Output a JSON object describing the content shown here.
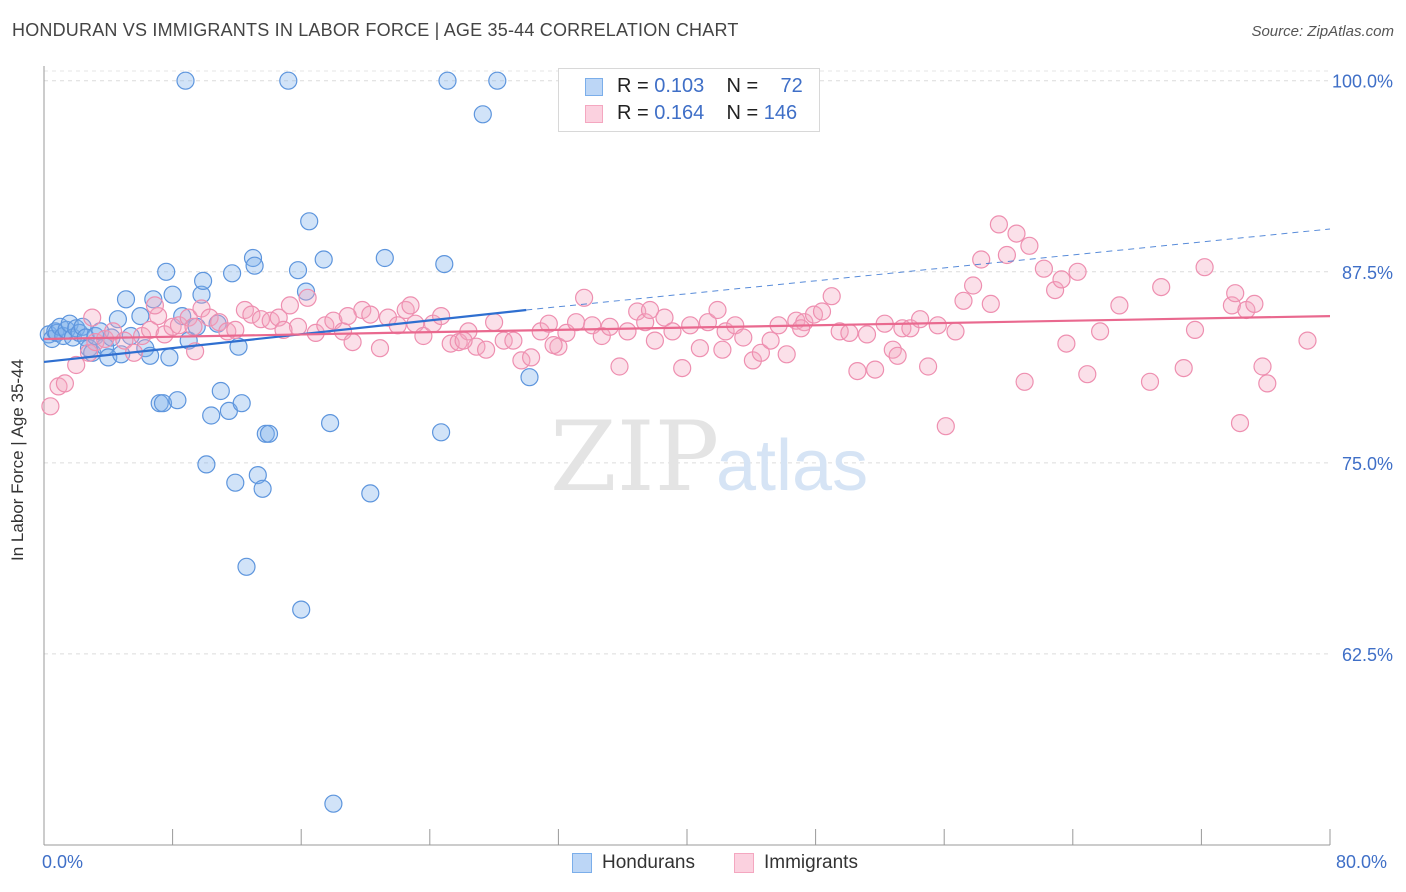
{
  "title": "HONDURAN VS IMMIGRANTS IN LABOR FORCE | AGE 35-44 CORRELATION CHART",
  "source": "Source: ZipAtlas.com",
  "watermark": {
    "zip": "ZIP",
    "atlas": "atlas"
  },
  "stats": [
    {
      "r_label": "R = ",
      "r_value": "0.103",
      "n_label": "N = ",
      "n_value": "72",
      "color": "#7baeea"
    },
    {
      "r_label": "R = ",
      "r_value": "0.164",
      "n_label": "N = ",
      "n_value": "146",
      "color": "#f4a7c0"
    }
  ],
  "legend": [
    {
      "label": "Hondurans",
      "color": "#7baeea"
    },
    {
      "label": "Immigrants",
      "color": "#f4a7c0"
    }
  ],
  "chart_data": {
    "type": "scatter",
    "xlabel": "",
    "ylabel": "In Labor Force | Age 35-44",
    "xlim": [
      0,
      80
    ],
    "ylim": [
      50,
      100.7
    ],
    "x_tick_labels": [
      "0.0%",
      "80.0%"
    ],
    "y_tick_labels": [
      {
        "value": 100,
        "label": "100.0%"
      },
      {
        "value": 87.5,
        "label": "87.5%"
      },
      {
        "value": 75,
        "label": "75.0%"
      },
      {
        "value": 62.5,
        "label": "62.5%"
      }
    ],
    "grid": true,
    "series": [
      {
        "name": "Hondurans",
        "color": "#7baeea",
        "line_color": "#2f6fd0",
        "trend": {
          "x0": 0,
          "y0": 81.6,
          "x1": 30,
          "y1": 85.0,
          "dashed_to_x": 80,
          "dashed_to_y": 90.3
        },
        "points": [
          [
            0.3,
            83.4
          ],
          [
            0.5,
            83.1
          ],
          [
            0.7,
            83.6
          ],
          [
            0.8,
            83.5
          ],
          [
            1.0,
            83.9
          ],
          [
            1.2,
            83.3
          ],
          [
            1.4,
            83.7
          ],
          [
            1.6,
            84.1
          ],
          [
            1.8,
            83.2
          ],
          [
            2.0,
            83.8
          ],
          [
            2.2,
            83.5
          ],
          [
            2.4,
            83.9
          ],
          [
            2.6,
            83.2
          ],
          [
            2.8,
            82.5
          ],
          [
            3.0,
            82.2
          ],
          [
            3.2,
            83.3
          ],
          [
            3.5,
            83.6
          ],
          [
            3.8,
            82.6
          ],
          [
            4.0,
            81.9
          ],
          [
            4.2,
            83.2
          ],
          [
            4.6,
            84.4
          ],
          [
            4.8,
            82.1
          ],
          [
            5.1,
            85.7
          ],
          [
            5.4,
            83.3
          ],
          [
            6.0,
            84.6
          ],
          [
            6.3,
            82.5
          ],
          [
            6.6,
            82.0
          ],
          [
            6.8,
            85.7
          ],
          [
            7.2,
            78.9
          ],
          [
            7.4,
            78.9
          ],
          [
            7.6,
            87.5
          ],
          [
            7.8,
            81.9
          ],
          [
            8.0,
            86.0
          ],
          [
            8.3,
            79.1
          ],
          [
            8.6,
            84.6
          ],
          [
            8.8,
            100.0
          ],
          [
            9.0,
            83.0
          ],
          [
            9.5,
            83.9
          ],
          [
            9.8,
            86.0
          ],
          [
            9.9,
            86.9
          ],
          [
            10.1,
            74.9
          ],
          [
            10.4,
            78.1
          ],
          [
            10.8,
            84.1
          ],
          [
            11.0,
            79.7
          ],
          [
            11.5,
            78.4
          ],
          [
            11.7,
            87.4
          ],
          [
            11.9,
            73.7
          ],
          [
            12.1,
            82.6
          ],
          [
            12.3,
            78.9
          ],
          [
            12.6,
            68.2
          ],
          [
            13.0,
            88.4
          ],
          [
            13.1,
            87.9
          ],
          [
            13.3,
            74.2
          ],
          [
            13.6,
            73.3
          ],
          [
            13.8,
            76.9
          ],
          [
            14.0,
            76.9
          ],
          [
            15.2,
            100.0
          ],
          [
            15.8,
            87.6
          ],
          [
            16.0,
            65.4
          ],
          [
            16.3,
            86.2
          ],
          [
            16.5,
            90.8
          ],
          [
            17.4,
            88.3
          ],
          [
            17.8,
            77.6
          ],
          [
            18.0,
            52.7
          ],
          [
            20.3,
            73.0
          ],
          [
            21.2,
            88.4
          ],
          [
            24.7,
            77.0
          ],
          [
            24.9,
            88.0
          ],
          [
            25.1,
            100.0
          ],
          [
            27.3,
            97.8
          ],
          [
            28.2,
            100.0
          ],
          [
            30.2,
            80.6
          ]
        ]
      },
      {
        "name": "Immigrants",
        "color": "#f4a7c0",
        "line_color": "#e9698f",
        "trend": {
          "x0": 0,
          "y0": 83.1,
          "x1": 80,
          "y1": 84.6
        },
        "points": [
          [
            0.4,
            78.7
          ],
          [
            0.9,
            80.0
          ],
          [
            1.3,
            80.2
          ],
          [
            2.0,
            81.4
          ],
          [
            2.8,
            82.2
          ],
          [
            3.2,
            82.9
          ],
          [
            3.8,
            83.1
          ],
          [
            4.3,
            83.6
          ],
          [
            5.0,
            83.0
          ],
          [
            5.6,
            82.2
          ],
          [
            6.1,
            83.3
          ],
          [
            6.6,
            83.7
          ],
          [
            7.1,
            84.6
          ],
          [
            7.5,
            83.4
          ],
          [
            8.0,
            83.9
          ],
          [
            8.4,
            84.0
          ],
          [
            9.0,
            84.5
          ],
          [
            9.3,
            83.9
          ],
          [
            9.8,
            85.1
          ],
          [
            10.3,
            84.5
          ],
          [
            10.9,
            84.2
          ],
          [
            11.4,
            83.6
          ],
          [
            11.9,
            83.7
          ],
          [
            12.5,
            85.0
          ],
          [
            12.9,
            84.7
          ],
          [
            13.5,
            84.4
          ],
          [
            14.1,
            84.3
          ],
          [
            14.6,
            84.5
          ],
          [
            15.3,
            85.3
          ],
          [
            15.8,
            83.9
          ],
          [
            16.4,
            85.8
          ],
          [
            16.9,
            83.5
          ],
          [
            17.5,
            84.0
          ],
          [
            18.0,
            84.3
          ],
          [
            18.6,
            83.6
          ],
          [
            19.2,
            82.9
          ],
          [
            19.8,
            85.0
          ],
          [
            20.3,
            84.7
          ],
          [
            20.9,
            82.5
          ],
          [
            21.4,
            84.5
          ],
          [
            22.0,
            84.0
          ],
          [
            22.5,
            85.0
          ],
          [
            23.1,
            84.1
          ],
          [
            23.6,
            83.3
          ],
          [
            24.2,
            84.1
          ],
          [
            24.7,
            84.6
          ],
          [
            25.3,
            82.8
          ],
          [
            25.8,
            82.9
          ],
          [
            26.4,
            83.6
          ],
          [
            26.9,
            82.6
          ],
          [
            27.5,
            82.4
          ],
          [
            28.0,
            84.2
          ],
          [
            28.6,
            83.0
          ],
          [
            29.2,
            83.0
          ],
          [
            29.7,
            81.7
          ],
          [
            30.3,
            81.9
          ],
          [
            30.9,
            83.6
          ],
          [
            31.4,
            84.1
          ],
          [
            32.0,
            82.6
          ],
          [
            32.5,
            83.5
          ],
          [
            33.1,
            84.2
          ],
          [
            33.6,
            85.8
          ],
          [
            34.1,
            84.0
          ],
          [
            34.7,
            83.3
          ],
          [
            35.2,
            83.9
          ],
          [
            35.8,
            81.3
          ],
          [
            36.3,
            83.6
          ],
          [
            36.9,
            84.9
          ],
          [
            37.4,
            84.2
          ],
          [
            38.0,
            83.0
          ],
          [
            38.6,
            84.5
          ],
          [
            39.1,
            83.6
          ],
          [
            39.7,
            81.2
          ],
          [
            40.2,
            84.0
          ],
          [
            40.8,
            82.5
          ],
          [
            41.3,
            84.2
          ],
          [
            41.9,
            85.0
          ],
          [
            42.4,
            83.6
          ],
          [
            43.0,
            84.0
          ],
          [
            43.5,
            83.2
          ],
          [
            44.1,
            81.7
          ],
          [
            44.6,
            82.2
          ],
          [
            45.2,
            83.0
          ],
          [
            45.7,
            84.0
          ],
          [
            46.2,
            82.1
          ],
          [
            46.8,
            84.3
          ],
          [
            47.3,
            84.2
          ],
          [
            47.9,
            84.7
          ],
          [
            48.4,
            84.9
          ],
          [
            49.0,
            85.9
          ],
          [
            49.5,
            83.6
          ],
          [
            50.1,
            83.5
          ],
          [
            50.6,
            81.0
          ],
          [
            51.2,
            83.4
          ],
          [
            51.7,
            81.1
          ],
          [
            52.3,
            84.1
          ],
          [
            52.8,
            82.4
          ],
          [
            53.4,
            83.8
          ],
          [
            53.9,
            83.8
          ],
          [
            54.5,
            84.4
          ],
          [
            55.0,
            81.3
          ],
          [
            55.6,
            84.0
          ],
          [
            56.1,
            77.4
          ],
          [
            56.7,
            83.6
          ],
          [
            57.2,
            85.6
          ],
          [
            57.8,
            86.6
          ],
          [
            58.3,
            88.3
          ],
          [
            58.9,
            85.4
          ],
          [
            59.4,
            90.6
          ],
          [
            59.9,
            88.6
          ],
          [
            60.5,
            90.0
          ],
          [
            61.0,
            80.3
          ],
          [
            61.3,
            89.2
          ],
          [
            62.2,
            87.7
          ],
          [
            62.9,
            86.3
          ],
          [
            63.3,
            87.0
          ],
          [
            63.6,
            82.8
          ],
          [
            64.3,
            87.5
          ],
          [
            64.9,
            80.8
          ],
          [
            65.7,
            83.6
          ],
          [
            66.9,
            85.3
          ],
          [
            68.8,
            80.3
          ],
          [
            69.5,
            86.5
          ],
          [
            70.9,
            81.2
          ],
          [
            71.6,
            83.7
          ],
          [
            72.2,
            87.8
          ],
          [
            73.9,
            85.3
          ],
          [
            74.1,
            86.1
          ],
          [
            74.4,
            77.6
          ],
          [
            74.8,
            85.0
          ],
          [
            75.3,
            85.4
          ],
          [
            75.8,
            81.3
          ],
          [
            76.1,
            80.2
          ],
          [
            78.6,
            83.0
          ],
          [
            3.0,
            84.5
          ],
          [
            6.9,
            85.3
          ],
          [
            9.4,
            82.3
          ],
          [
            14.9,
            83.7
          ],
          [
            18.9,
            84.6
          ],
          [
            22.8,
            85.3
          ],
          [
            26.1,
            83.0
          ],
          [
            31.7,
            82.7
          ],
          [
            37.7,
            85.0
          ],
          [
            42.2,
            82.4
          ],
          [
            47.1,
            83.8
          ],
          [
            53.1,
            82.0
          ]
        ]
      }
    ]
  }
}
